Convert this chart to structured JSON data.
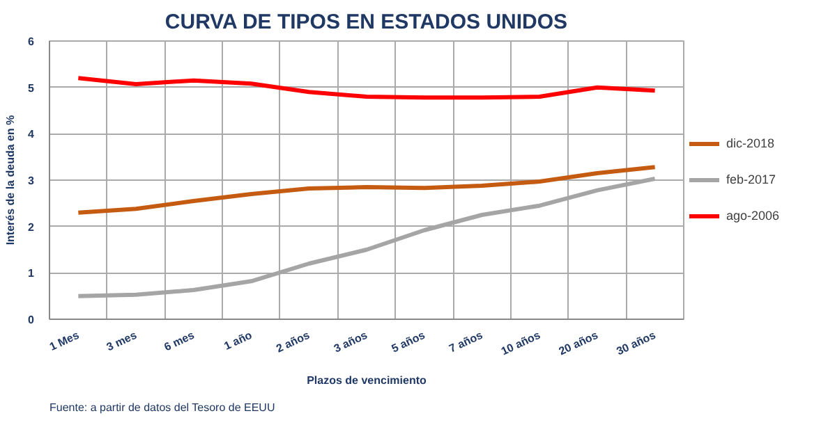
{
  "chart_data": {
    "type": "line",
    "title": "CURVA DE TIPOS EN ESTADOS UNIDOS",
    "xlabel": "Plazos de vencimiento",
    "ylabel": "Interés de la deuda en %",
    "categories": [
      "1 Mes",
      "3 mes",
      "6 mes",
      "1 año",
      "2 años",
      "3 años",
      "5 años",
      "7 años",
      "10 años",
      "20 años",
      "30 años"
    ],
    "series": [
      {
        "name": "dic-2018",
        "color": "#c55a11",
        "values": [
          2.3,
          2.38,
          2.55,
          2.7,
          2.82,
          2.85,
          2.83,
          2.88,
          2.97,
          3.15,
          3.28
        ]
      },
      {
        "name": "feb-2017",
        "color": "#a5a5a5",
        "values": [
          0.5,
          0.53,
          0.63,
          0.82,
          1.2,
          1.5,
          1.92,
          2.25,
          2.45,
          2.78,
          3.03
        ]
      },
      {
        "name": "ago-2006",
        "color": "#ff0000",
        "values": [
          5.2,
          5.07,
          5.15,
          5.08,
          4.9,
          4.8,
          4.78,
          4.78,
          4.8,
          5.0,
          4.93
        ]
      }
    ],
    "ylim": [
      0,
      6
    ],
    "yticks": [
      0,
      1,
      2,
      3,
      4,
      5,
      6
    ],
    "grid": true,
    "legend": "right",
    "marker": "none",
    "line_style": "solid",
    "annotations": [
      "Fuente: a partir de datos del Tesoro de EEUU"
    ]
  }
}
